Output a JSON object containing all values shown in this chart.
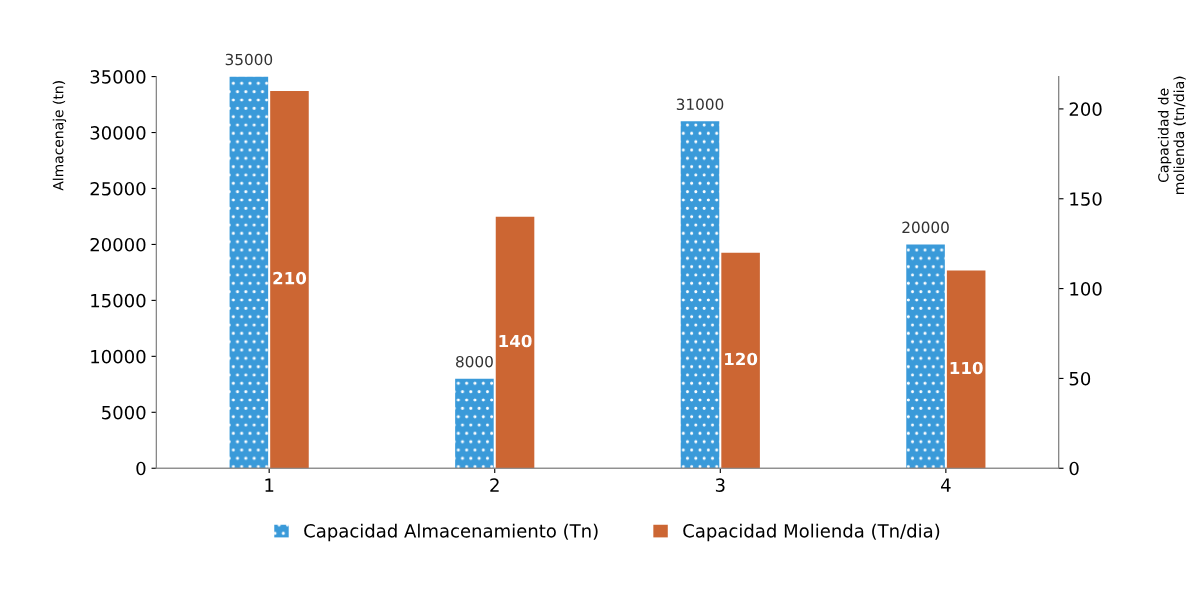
{
  "chart_data": {
    "type": "bar",
    "categories": [
      "1",
      "2",
      "3",
      "4"
    ],
    "ylabel": "Almacenaje (tn)",
    "y2label": "Capacidad de\nmolienda (tn/dia)",
    "series": [
      {
        "name": "Capacidad Almacenamiento (Tn)",
        "color": "#3a9ad9",
        "values": [
          35000,
          8000,
          31000,
          20000
        ]
      },
      {
        "name": "Capacidad Molienda (Tn/dia)",
        "color": "#cc6633",
        "values": [
          210,
          140,
          120,
          110
        ],
        "axis": "y2"
      }
    ],
    "ylim": [
      0,
      35000
    ],
    "yticks": [
      0,
      5000,
      10000,
      15000,
      20000,
      25000,
      30000,
      35000
    ],
    "y2lim": [
      0,
      218
    ],
    "y2ticks": [
      0,
      50,
      100,
      150,
      200
    ],
    "data_labels": true,
    "legend": "bottom",
    "grid": false
  }
}
